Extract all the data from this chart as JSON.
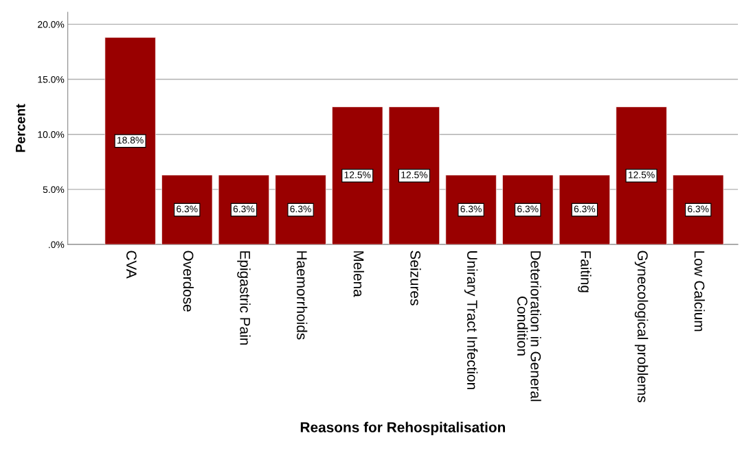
{
  "chart_data": {
    "type": "bar",
    "xlabel": "Reasons for Rehospitalisation",
    "ylabel": "Percent",
    "categories": [
      "CVA",
      "Overdose",
      "Epigastric Pain",
      "Haemorrhoids",
      "Melena",
      "Seizures",
      "Unirary Tract Infection",
      "Deterioration in General\nCondition",
      "Faiting",
      "Gynecological problems",
      "Low Calcium"
    ],
    "values": [
      18.8,
      6.3,
      6.3,
      6.3,
      12.5,
      12.5,
      6.3,
      6.3,
      6.3,
      12.5,
      6.3
    ],
    "value_labels": [
      "18.8%",
      "6.3%",
      "6.3%",
      "6.3%",
      "12.5%",
      "12.5%",
      "6.3%",
      "6.3%",
      "6.3%",
      "12.5%",
      "6.3%"
    ],
    "color": "#990000",
    "ylim": [
      0,
      21.1
    ],
    "yticks": [
      {
        "value": 0,
        "label": ".0%"
      },
      {
        "value": 5,
        "label": "5.0%"
      },
      {
        "value": 10,
        "label": "10.0%"
      },
      {
        "value": 15,
        "label": "15.0%"
      },
      {
        "value": 20,
        "label": "20.0%"
      }
    ],
    "grid": "y"
  }
}
